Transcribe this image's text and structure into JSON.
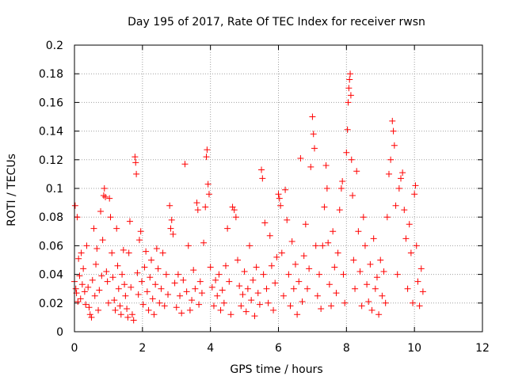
{
  "chart_data": {
    "type": "scatter",
    "title": "Day 195 of 2017, Rate Of TEC Index for receiver rwsn",
    "xlabel": "GPS time / hours",
    "ylabel": "ROTI / TECUs",
    "xlim": [
      0,
      12
    ],
    "ylim": [
      0,
      0.2
    ],
    "xticks": [
      0,
      2,
      4,
      6,
      8,
      10,
      12
    ],
    "xtick_labels": [
      "0",
      "2",
      "4",
      "6",
      "8",
      "10",
      "12"
    ],
    "yticks": [
      0,
      0.02,
      0.04,
      0.06,
      0.08,
      0.1,
      0.12,
      0.14,
      0.16,
      0.18,
      0.2
    ],
    "ytick_labels": [
      "0",
      "0.02",
      "0.04",
      "0.06",
      "0.08",
      "0.1",
      "0.12",
      "0.14",
      "0.16",
      "0.18",
      "0.2"
    ],
    "grid": true,
    "marker": "+",
    "series": [
      {
        "color": "#ff0000",
        "points": [
          [
            0.0,
            0.035
          ],
          [
            0.02,
            0.088
          ],
          [
            0.04,
            0.03
          ],
          [
            0.06,
            0.027
          ],
          [
            0.08,
            0.08
          ],
          [
            0.1,
            0.021
          ],
          [
            0.12,
            0.051
          ],
          [
            0.15,
            0.039
          ],
          [
            0.18,
            0.023
          ],
          [
            0.2,
            0.055
          ],
          [
            0.23,
            0.033
          ],
          [
            0.26,
            0.044
          ],
          [
            0.3,
            0.028
          ],
          [
            0.33,
            0.019
          ],
          [
            0.36,
            0.06
          ],
          [
            0.4,
            0.031
          ],
          [
            0.43,
            0.017
          ],
          [
            0.46,
            0.012
          ],
          [
            0.5,
            0.01
          ],
          [
            0.53,
            0.036
          ],
          [
            0.57,
            0.072
          ],
          [
            0.6,
            0.025
          ],
          [
            0.63,
            0.047
          ],
          [
            0.66,
            0.058
          ],
          [
            0.7,
            0.015
          ],
          [
            0.73,
            0.029
          ],
          [
            0.77,
            0.084
          ],
          [
            0.8,
            0.039
          ],
          [
            0.83,
            0.064
          ],
          [
            0.86,
            0.095
          ],
          [
            0.88,
            0.1
          ],
          [
            0.91,
            0.094
          ],
          [
            0.94,
            0.042
          ],
          [
            0.97,
            0.035
          ],
          [
            1.0,
            0.02
          ],
          [
            1.03,
            0.093
          ],
          [
            1.06,
            0.08
          ],
          [
            1.1,
            0.055
          ],
          [
            1.13,
            0.038
          ],
          [
            1.17,
            0.022
          ],
          [
            1.2,
            0.015
          ],
          [
            1.24,
            0.072
          ],
          [
            1.27,
            0.046
          ],
          [
            1.3,
            0.03
          ],
          [
            1.34,
            0.018
          ],
          [
            1.37,
            0.012
          ],
          [
            1.4,
            0.04
          ],
          [
            1.44,
            0.057
          ],
          [
            1.47,
            0.033
          ],
          [
            1.5,
            0.025
          ],
          [
            1.54,
            0.016
          ],
          [
            1.57,
            0.01
          ],
          [
            1.6,
            0.055
          ],
          [
            1.63,
            0.077
          ],
          [
            1.66,
            0.031
          ],
          [
            1.7,
            0.012
          ],
          [
            1.74,
            0.008
          ],
          [
            1.78,
            0.122
          ],
          [
            1.8,
            0.118
          ],
          [
            1.82,
            0.11
          ],
          [
            1.85,
            0.041
          ],
          [
            1.88,
            0.026
          ],
          [
            1.91,
            0.064
          ],
          [
            1.95,
            0.07
          ],
          [
            1.98,
            0.035
          ],
          [
            2.02,
            0.019
          ],
          [
            2.06,
            0.045
          ],
          [
            2.1,
            0.056
          ],
          [
            2.14,
            0.028
          ],
          [
            2.18,
            0.015
          ],
          [
            2.22,
            0.038
          ],
          [
            2.26,
            0.05
          ],
          [
            2.3,
            0.023
          ],
          [
            2.34,
            0.012
          ],
          [
            2.38,
            0.033
          ],
          [
            2.42,
            0.058
          ],
          [
            2.46,
            0.044
          ],
          [
            2.5,
            0.02
          ],
          [
            2.55,
            0.03
          ],
          [
            2.6,
            0.055
          ],
          [
            2.65,
            0.018
          ],
          [
            2.7,
            0.04
          ],
          [
            2.75,
            0.026
          ],
          [
            2.8,
            0.088
          ],
          [
            2.83,
            0.072
          ],
          [
            2.86,
            0.078
          ],
          [
            2.9,
            0.068
          ],
          [
            2.95,
            0.034
          ],
          [
            3.0,
            0.017
          ],
          [
            3.05,
            0.04
          ],
          [
            3.1,
            0.025
          ],
          [
            3.15,
            0.013
          ],
          [
            3.2,
            0.036
          ],
          [
            3.25,
            0.117
          ],
          [
            3.3,
            0.028
          ],
          [
            3.35,
            0.06
          ],
          [
            3.4,
            0.015
          ],
          [
            3.45,
            0.022
          ],
          [
            3.5,
            0.043
          ],
          [
            3.55,
            0.03
          ],
          [
            3.6,
            0.09
          ],
          [
            3.63,
            0.085
          ],
          [
            3.66,
            0.019
          ],
          [
            3.7,
            0.035
          ],
          [
            3.75,
            0.027
          ],
          [
            3.8,
            0.062
          ],
          [
            3.85,
            0.087
          ],
          [
            3.88,
            0.122
          ],
          [
            3.9,
            0.127
          ],
          [
            3.93,
            0.103
          ],
          [
            3.96,
            0.096
          ],
          [
            4.0,
            0.045
          ],
          [
            4.05,
            0.031
          ],
          [
            4.1,
            0.018
          ],
          [
            4.15,
            0.036
          ],
          [
            4.2,
            0.025
          ],
          [
            4.25,
            0.04
          ],
          [
            4.3,
            0.015
          ],
          [
            4.35,
            0.029
          ],
          [
            4.4,
            0.02
          ],
          [
            4.45,
            0.046
          ],
          [
            4.5,
            0.072
          ],
          [
            4.55,
            0.035
          ],
          [
            4.6,
            0.012
          ],
          [
            4.65,
            0.087
          ],
          [
            4.7,
            0.085
          ],
          [
            4.75,
            0.08
          ],
          [
            4.8,
            0.05
          ],
          [
            4.85,
            0.032
          ],
          [
            4.9,
            0.018
          ],
          [
            4.95,
            0.026
          ],
          [
            5.0,
            0.042
          ],
          [
            5.05,
            0.014
          ],
          [
            5.1,
            0.03
          ],
          [
            5.15,
            0.06
          ],
          [
            5.2,
            0.022
          ],
          [
            5.25,
            0.036
          ],
          [
            5.3,
            0.011
          ],
          [
            5.35,
            0.045
          ],
          [
            5.4,
            0.027
          ],
          [
            5.45,
            0.019
          ],
          [
            5.5,
            0.113
          ],
          [
            5.53,
            0.107
          ],
          [
            5.56,
            0.04
          ],
          [
            5.6,
            0.076
          ],
          [
            5.65,
            0.03
          ],
          [
            5.7,
            0.02
          ],
          [
            5.75,
            0.067
          ],
          [
            5.8,
            0.046
          ],
          [
            5.85,
            0.015
          ],
          [
            5.9,
            0.034
          ],
          [
            5.95,
            0.052
          ],
          [
            6.0,
            0.096
          ],
          [
            6.03,
            0.093
          ],
          [
            6.06,
            0.088
          ],
          [
            6.1,
            0.055
          ],
          [
            6.15,
            0.025
          ],
          [
            6.2,
            0.099
          ],
          [
            6.25,
            0.078
          ],
          [
            6.3,
            0.04
          ],
          [
            6.35,
            0.018
          ],
          [
            6.4,
            0.063
          ],
          [
            6.45,
            0.03
          ],
          [
            6.5,
            0.047
          ],
          [
            6.55,
            0.012
          ],
          [
            6.6,
            0.035
          ],
          [
            6.65,
            0.121
          ],
          [
            6.7,
            0.021
          ],
          [
            6.75,
            0.053
          ],
          [
            6.8,
            0.075
          ],
          [
            6.85,
            0.03
          ],
          [
            6.9,
            0.044
          ],
          [
            6.95,
            0.115
          ],
          [
            7.0,
            0.15
          ],
          [
            7.03,
            0.138
          ],
          [
            7.06,
            0.128
          ],
          [
            7.1,
            0.06
          ],
          [
            7.15,
            0.025
          ],
          [
            7.2,
            0.04
          ],
          [
            7.25,
            0.016
          ],
          [
            7.3,
            0.06
          ],
          [
            7.35,
            0.087
          ],
          [
            7.4,
            0.116
          ],
          [
            7.43,
            0.1
          ],
          [
            7.46,
            0.062
          ],
          [
            7.5,
            0.033
          ],
          [
            7.55,
            0.018
          ],
          [
            7.6,
            0.07
          ],
          [
            7.65,
            0.045
          ],
          [
            7.7,
            0.027
          ],
          [
            7.75,
            0.055
          ],
          [
            7.8,
            0.085
          ],
          [
            7.85,
            0.1
          ],
          [
            7.88,
            0.105
          ],
          [
            7.91,
            0.04
          ],
          [
            7.95,
            0.02
          ],
          [
            8.0,
            0.125
          ],
          [
            8.03,
            0.141
          ],
          [
            8.05,
            0.16
          ],
          [
            8.07,
            0.17
          ],
          [
            8.09,
            0.176
          ],
          [
            8.11,
            0.18
          ],
          [
            8.13,
            0.165
          ],
          [
            8.15,
            0.12
          ],
          [
            8.18,
            0.095
          ],
          [
            8.21,
            0.05
          ],
          [
            8.25,
            0.03
          ],
          [
            8.3,
            0.112
          ],
          [
            8.35,
            0.07
          ],
          [
            8.4,
            0.042
          ],
          [
            8.45,
            0.018
          ],
          [
            8.5,
            0.08
          ],
          [
            8.55,
            0.06
          ],
          [
            8.6,
            0.033
          ],
          [
            8.65,
            0.021
          ],
          [
            8.7,
            0.047
          ],
          [
            8.75,
            0.015
          ],
          [
            8.8,
            0.065
          ],
          [
            8.85,
            0.03
          ],
          [
            8.9,
            0.038
          ],
          [
            8.95,
            0.012
          ],
          [
            9.0,
            0.05
          ],
          [
            9.05,
            0.025
          ],
          [
            9.1,
            0.042
          ],
          [
            9.15,
            0.02
          ],
          [
            9.2,
            0.08
          ],
          [
            9.25,
            0.11
          ],
          [
            9.3,
            0.12
          ],
          [
            9.35,
            0.147
          ],
          [
            9.38,
            0.14
          ],
          [
            9.41,
            0.13
          ],
          [
            9.45,
            0.088
          ],
          [
            9.5,
            0.04
          ],
          [
            9.55,
            0.1
          ],
          [
            9.6,
            0.107
          ],
          [
            9.65,
            0.111
          ],
          [
            9.7,
            0.085
          ],
          [
            9.75,
            0.065
          ],
          [
            9.8,
            0.03
          ],
          [
            9.85,
            0.075
          ],
          [
            9.9,
            0.055
          ],
          [
            9.95,
            0.02
          ],
          [
            10.0,
            0.096
          ],
          [
            10.03,
            0.102
          ],
          [
            10.06,
            0.06
          ],
          [
            10.1,
            0.035
          ],
          [
            10.15,
            0.018
          ],
          [
            10.2,
            0.044
          ],
          [
            10.25,
            0.028
          ]
        ]
      }
    ]
  }
}
